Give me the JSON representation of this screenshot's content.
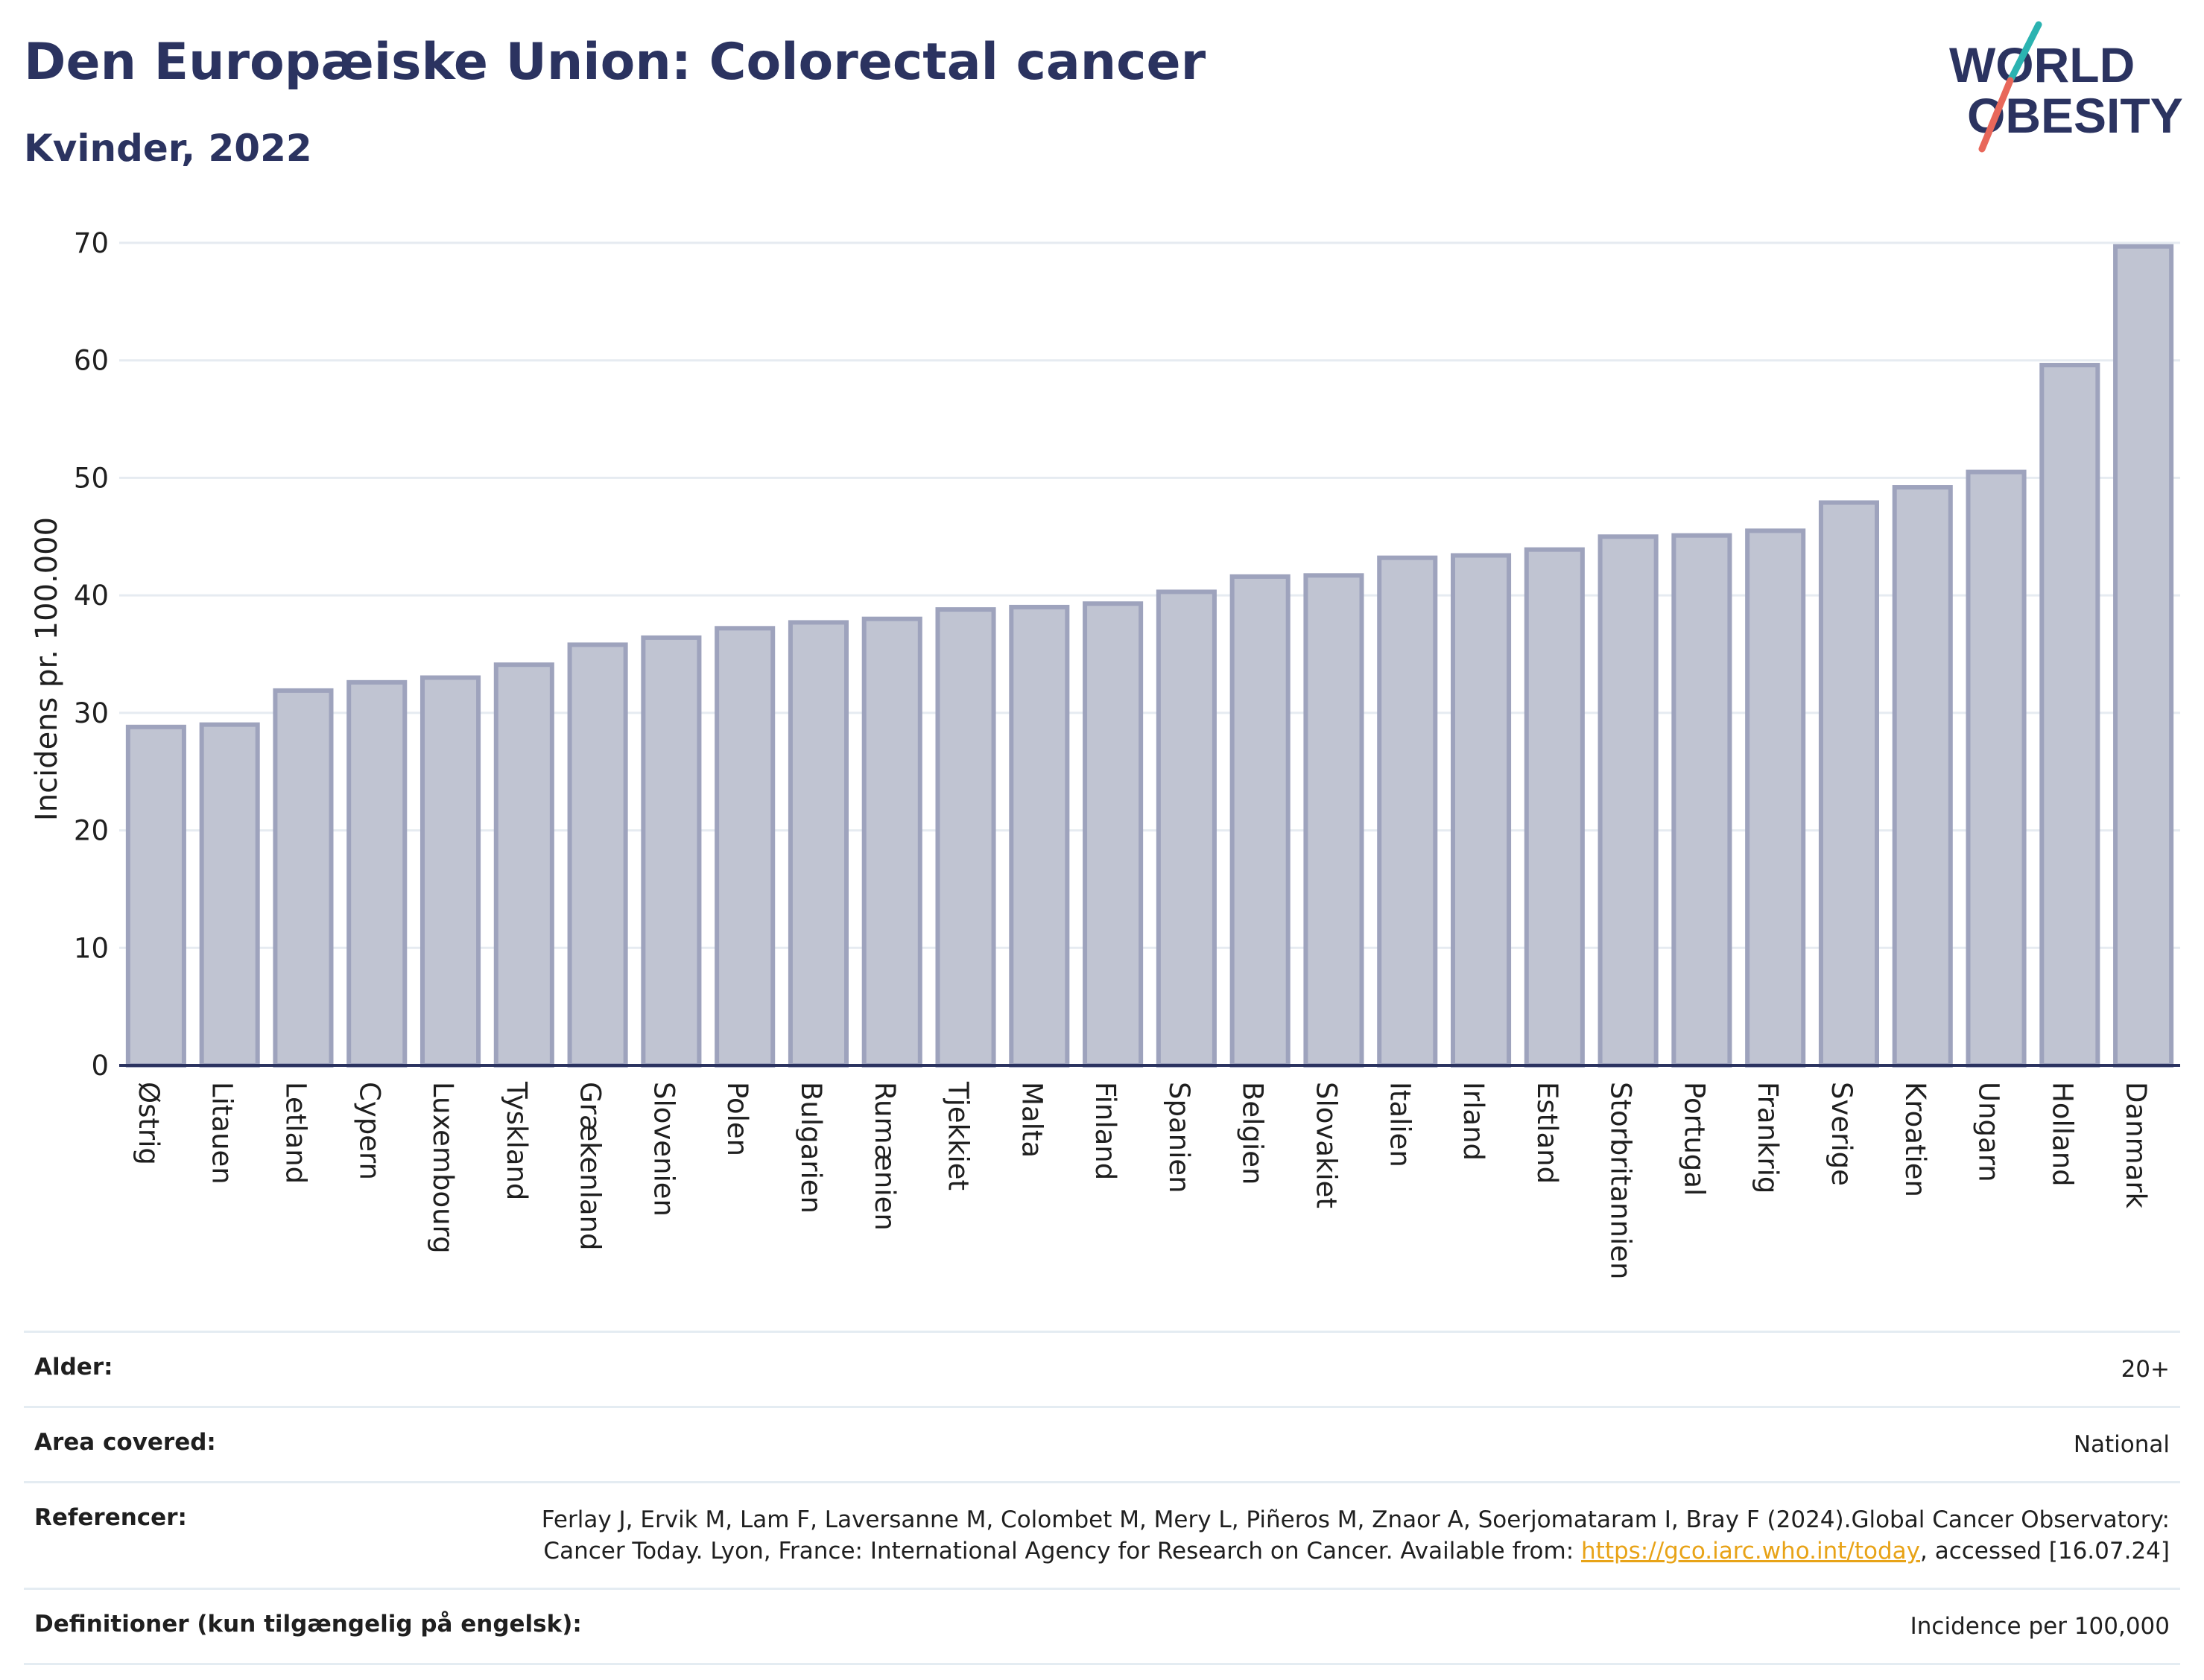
{
  "header": {
    "title": "Den Europæiske Union: Colorectal cancer",
    "subtitle": "Kvinder, 2022"
  },
  "logo": {
    "text": "WORLD OBESITY",
    "line1": "WORLD",
    "line2": "OBESITY",
    "colors": {
      "text": "#2b3360",
      "teal": "#2bb3b1",
      "coral": "#e8675a"
    }
  },
  "chart_data": {
    "type": "bar",
    "title": "",
    "ylabel": "Incidens pr. 100.000",
    "xlabel": "",
    "ylim": [
      0,
      70
    ],
    "yticks": [
      0,
      10,
      20,
      30,
      40,
      50,
      60,
      70
    ],
    "grid": true,
    "legend": "none",
    "bar_color": "#c0c4d2",
    "bar_edge_color": "#9ea3bd",
    "categories": [
      "Østrig",
      "Litauen",
      "Letland",
      "Cypern",
      "Luxembourg",
      "Tyskland",
      "Grækenland",
      "Slovenien",
      "Polen",
      "Bulgarien",
      "Rumænien",
      "Tjekkiet",
      "Malta",
      "Finland",
      "Spanien",
      "Belgien",
      "Slovakiet",
      "Italien",
      "Irland",
      "Estland",
      "Storbritannien",
      "Portugal",
      "Frankrig",
      "Sverige",
      "Kroatien",
      "Ungarn",
      "Holland",
      "Danmark"
    ],
    "values": [
      28.8,
      29.0,
      31.9,
      32.6,
      33.0,
      34.1,
      35.8,
      36.4,
      37.2,
      37.7,
      38.0,
      38.8,
      39.0,
      39.3,
      40.3,
      41.6,
      41.7,
      43.2,
      43.4,
      43.9,
      45.0,
      45.1,
      45.5,
      47.9,
      49.2,
      50.5,
      59.6,
      69.7
    ]
  },
  "meta": {
    "rows": [
      {
        "label": "Alder:",
        "value": "20+"
      },
      {
        "label": "Area covered:",
        "value": "National"
      },
      {
        "label": "Referencer:",
        "value_parts": {
          "before": "Ferlay J, Ervik M, Lam F, Laversanne M, Colombet M, Mery L, Piñeros M, Znaor A, Soerjomataram I, Bray F (2024).Global Cancer Observatory: Cancer Today. Lyon, France: International Agency for Research on Cancer. Available from: ",
          "link": "https://gco.iarc.who.int/today",
          "after": ", accessed [16.07.24]"
        }
      },
      {
        "label": "Definitioner (kun tilgængelig på engelsk):",
        "value": "Incidence per 100,000"
      }
    ]
  }
}
